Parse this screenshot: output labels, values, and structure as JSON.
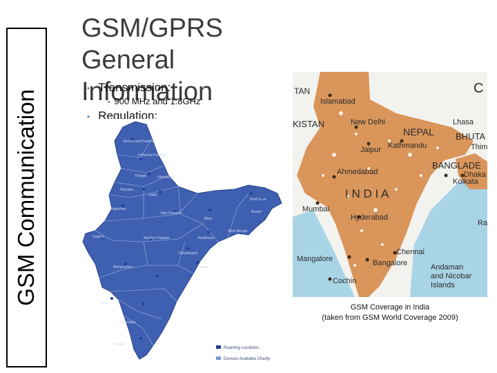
{
  "sidebar": {
    "title": "GSM Communication"
  },
  "slide": {
    "title_line1": "GSM/GPRS General",
    "title_line2": "Information",
    "bullets": [
      {
        "text": "Transmission:",
        "level": 1
      },
      {
        "text": "900 MHz and 1.8GHz",
        "level": 2
      },
      {
        "text": "Regulation:",
        "level": 1
      }
    ]
  },
  "left_map": {
    "legend": [
      "Roaming Locations",
      "Devices Available Charily"
    ],
    "labels": [
      "Jammu and Kashmir",
      "Himachal Pradesh",
      "Punjab",
      "Uttaranchal",
      "Haryana",
      "Delhi",
      "Rajasthan",
      "Uttar Pradesh",
      "Bihar",
      "North East",
      "Assam",
      "West Bengal",
      "Gujarat",
      "Madhya Pradesh",
      "Jharkhand",
      "Chhattisgarh",
      "Orissa",
      "Maharashtra",
      "Goa",
      "Karnataka",
      "Kerala"
    ],
    "colors": {
      "land": "#3f5fb0",
      "border": "#8aa0d8",
      "roaming": "#1f3f9a",
      "devices": "#7a95d8"
    }
  },
  "right_map": {
    "labels": [
      "TAN",
      "Islamabad",
      "C",
      "KISTAN",
      "New Delhi",
      "Lhasa",
      "NEPAL",
      "BHUTA",
      "Kathmandu",
      "Thim",
      "Jaipur",
      "BANGLADE",
      "Ahmedabad",
      "Dhaka",
      "Kolkata",
      "I N D I A",
      "Mumbai",
      "Hyderabad",
      "Ra",
      "Chennai",
      "Mangalore",
      "Bangalore",
      "Andaman and Nicobar Islands",
      "Cochin"
    ],
    "colors": {
      "land": "#d9955a",
      "neighbor": "#f2f2ef",
      "sea": "#a8d4e6",
      "dots": "#ffffff"
    }
  },
  "caption": {
    "line1": "GSM Coverage in India",
    "line2": "(taken from GSM World Coverage 2009)"
  }
}
